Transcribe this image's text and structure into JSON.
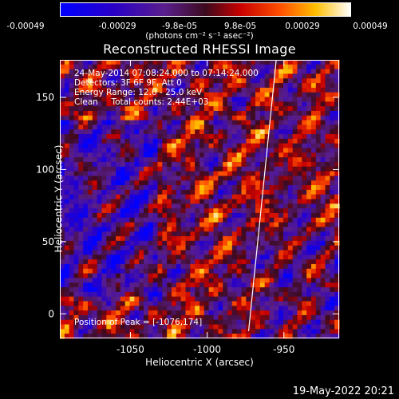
{
  "title": "Reconstructed RHESSI Image",
  "colorbar": {
    "ticks": [
      "-0.00049",
      "-0.00029",
      "-9.8e-05",
      "9.8e-05",
      "0.00029",
      "0.00049"
    ],
    "units": "(photons cm⁻² s⁻¹ asec⁻²)",
    "min": -0.00049,
    "max": 0.00049
  },
  "info": {
    "time": "24-May-2014 07:08:24.000 to 07:14:24.000",
    "detectors": "Detectors: 3F 6F 9F, Att 0",
    "energy": "Energy Range: 12.0 - 25.0 keV",
    "algorithm": "Clean     Total counts: 2.44E+03",
    "peak": "Position of Peak = [-1076,174]"
  },
  "axes": {
    "xlabel": "Heliocentric X (arcsec)",
    "ylabel": "Heliocentric Y (arcsec)",
    "xticks": [
      "-1050",
      "-1000",
      "-950"
    ],
    "yticks": [
      "0",
      "50",
      "100",
      "150"
    ]
  },
  "footer": "19-May-2022 20:21",
  "chart_data": {
    "type": "heatmap",
    "title": "Reconstructed RHESSI Image",
    "xlabel": "Heliocentric X (arcsec)",
    "ylabel": "Heliocentric Y (arcsec)",
    "xlim": [
      -1096,
      -914
    ],
    "ylim": [
      -17,
      176
    ],
    "xticks": [
      -1050,
      -1000,
      -950
    ],
    "yticks": [
      0,
      50,
      100,
      150
    ],
    "colorbar_range": [
      -0.00049,
      0.00049
    ],
    "peak": [
      -1076,
      174
    ],
    "limb_line": [
      [
        -973,
        -12
      ],
      [
        -955,
        176
      ]
    ]
  }
}
